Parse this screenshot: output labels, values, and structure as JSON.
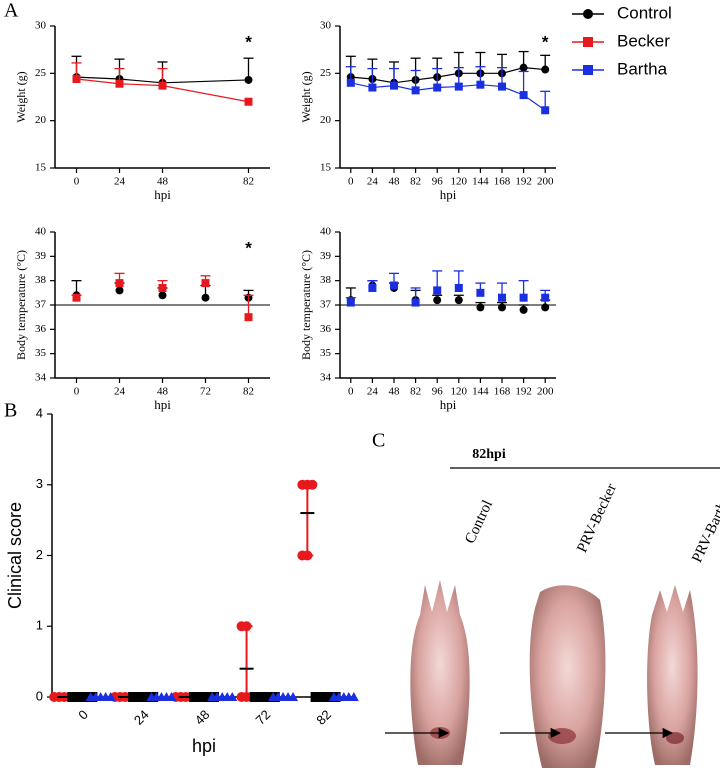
{
  "panel_labels": [
    "A",
    "B",
    "C"
  ],
  "legend": [
    {
      "name": "Control",
      "color": "#000000",
      "marker": "circle"
    },
    {
      "name": "Becker",
      "color": "#e8191c",
      "marker": "square"
    },
    {
      "name": "Bartha",
      "color": "#1a2fe0",
      "marker": "square"
    }
  ],
  "chart_data": [
    {
      "type": "line",
      "ylabel": "Weight (g)",
      "xlabel": "hpi",
      "categories": [
        "0",
        "24",
        "48",
        null,
        "82"
      ],
      "ylim": [
        15,
        30
      ],
      "yticks": [
        15,
        20,
        25,
        30
      ],
      "series": [
        {
          "name": "Control",
          "color": "#000000",
          "marker": "circle",
          "values": [
            24.6,
            24.4,
            24.0,
            null,
            24.3
          ],
          "error": [
            2.2,
            2.1,
            2.2,
            null,
            2.3
          ]
        },
        {
          "name": "Becker",
          "color": "#e8191c",
          "marker": "square",
          "values": [
            24.4,
            23.9,
            23.7,
            null,
            22.0
          ],
          "error": [
            1.7,
            1.6,
            1.8,
            null,
            null
          ]
        }
      ],
      "annotation": {
        "text": "*",
        "category": "82"
      }
    },
    {
      "type": "line",
      "ylabel": "Weight (g)",
      "xlabel": "hpi",
      "categories": [
        "0",
        "24",
        "48",
        "82",
        "96",
        "120",
        "144",
        "168",
        "192",
        "200"
      ],
      "ylim": [
        15,
        30
      ],
      "yticks": [
        15,
        20,
        25,
        30
      ],
      "series": [
        {
          "name": "Control",
          "color": "#000000",
          "marker": "circle",
          "values": [
            24.6,
            24.4,
            24.0,
            24.3,
            24.6,
            25.0,
            25.0,
            25.0,
            25.6,
            25.4
          ],
          "error": [
            2.2,
            2.1,
            2.2,
            2.3,
            2.0,
            2.2,
            2.2,
            2.0,
            1.7,
            1.5
          ]
        },
        {
          "name": "Bartha",
          "color": "#1a2fe0",
          "marker": "square",
          "values": [
            24.0,
            23.5,
            23.7,
            23.2,
            23.5,
            23.6,
            23.8,
            23.6,
            22.7,
            21.1
          ],
          "error": [
            1.7,
            2.0,
            1.8,
            2.1,
            2.0,
            2.0,
            1.9,
            2.0,
            2.5,
            2.0
          ]
        }
      ],
      "annotation": {
        "text": "*",
        "category": "200"
      }
    },
    {
      "type": "dot",
      "ylabel": "Body temperature (°C)",
      "xlabel": "hpi",
      "categories": [
        "0",
        "24",
        "48",
        "72",
        "82"
      ],
      "ylim": [
        34,
        40
      ],
      "yticks": [
        34,
        35,
        36,
        37,
        38,
        39,
        40
      ],
      "hline": 37,
      "series": [
        {
          "name": "Control",
          "color": "#000000",
          "marker": "circle",
          "values": [
            37.4,
            37.6,
            37.4,
            37.3,
            37.3
          ],
          "error": [
            0.6,
            0.3,
            0.3,
            0.5,
            0.3
          ]
        },
        {
          "name": "Becker",
          "color": "#e8191c",
          "marker": "square",
          "values": [
            37.3,
            37.9,
            37.7,
            37.9,
            36.5
          ],
          "error": [
            0.1,
            0.4,
            0.3,
            0.3,
            0.9
          ]
        }
      ],
      "annotation": {
        "text": "*",
        "category": "82"
      }
    },
    {
      "type": "dot",
      "ylabel": "Body temperature (°C)",
      "xlabel": "hpi",
      "categories": [
        "0",
        "24",
        "48",
        "82",
        "96",
        "120",
        "144",
        "168",
        "192",
        "200"
      ],
      "ylim": [
        34,
        40
      ],
      "yticks": [
        34,
        35,
        36,
        37,
        38,
        39,
        40
      ],
      "hline": 37,
      "series": [
        {
          "name": "Control",
          "color": "#000000",
          "marker": "circle",
          "values": [
            37.2,
            37.8,
            37.7,
            37.2,
            37.2,
            37.2,
            36.9,
            36.9,
            36.8,
            36.9
          ],
          "error": [
            0.5,
            0.2,
            0.2,
            0.4,
            0.2,
            0.2,
            0.2,
            0.2,
            0.2,
            0.3
          ]
        },
        {
          "name": "Bartha",
          "color": "#1a2fe0",
          "marker": "square",
          "values": [
            37.1,
            37.7,
            37.8,
            37.1,
            37.6,
            37.7,
            37.5,
            37.3,
            37.3,
            37.3
          ],
          "error": [
            0.2,
            0.3,
            0.5,
            0.6,
            0.8,
            0.7,
            0.4,
            0.6,
            0.7,
            0.3
          ]
        }
      ]
    },
    {
      "type": "dotplot",
      "ylabel": "Clinical score",
      "xlabel": "hpi",
      "categories": [
        "0",
        "24",
        "48",
        "72",
        "82"
      ],
      "ylim": [
        0,
        4
      ],
      "yticks": [
        0,
        1,
        2,
        3,
        4
      ],
      "series": [
        {
          "color": "#e8191c",
          "marker": "circle",
          "values": [
            0,
            0,
            0,
            0.4,
            2.6
          ],
          "points": [
            [
              0,
              0,
              0,
              0,
              0
            ],
            [
              0,
              0,
              0,
              0,
              0
            ],
            [
              0,
              0,
              0,
              0,
              0
            ],
            [
              1,
              1,
              0,
              0,
              0
            ],
            [
              3,
              3,
              3,
              2,
              2
            ]
          ]
        },
        {
          "color": "#000000",
          "marker": "square",
          "points": [
            [
              0,
              0,
              0,
              0,
              0
            ],
            [
              0,
              0,
              0,
              0,
              0
            ],
            [
              0,
              0,
              0,
              0,
              0
            ],
            [
              0,
              0,
              0,
              0,
              0
            ],
            [
              0,
              0,
              0,
              0,
              0
            ]
          ]
        },
        {
          "color": "#1a2fe0",
          "marker": "triangle",
          "points": [
            [
              0,
              0,
              0,
              0,
              0
            ],
            [
              0,
              0,
              0,
              0,
              0
            ],
            [
              0,
              0,
              0,
              0,
              0
            ],
            [
              0,
              0,
              0,
              0,
              0
            ],
            [
              0,
              0,
              0,
              0,
              0
            ]
          ]
        }
      ]
    }
  ],
  "panel_c": {
    "time": "82hpi",
    "samples": [
      "Control",
      "PRV-Becker",
      "PRV-Bartha"
    ]
  }
}
